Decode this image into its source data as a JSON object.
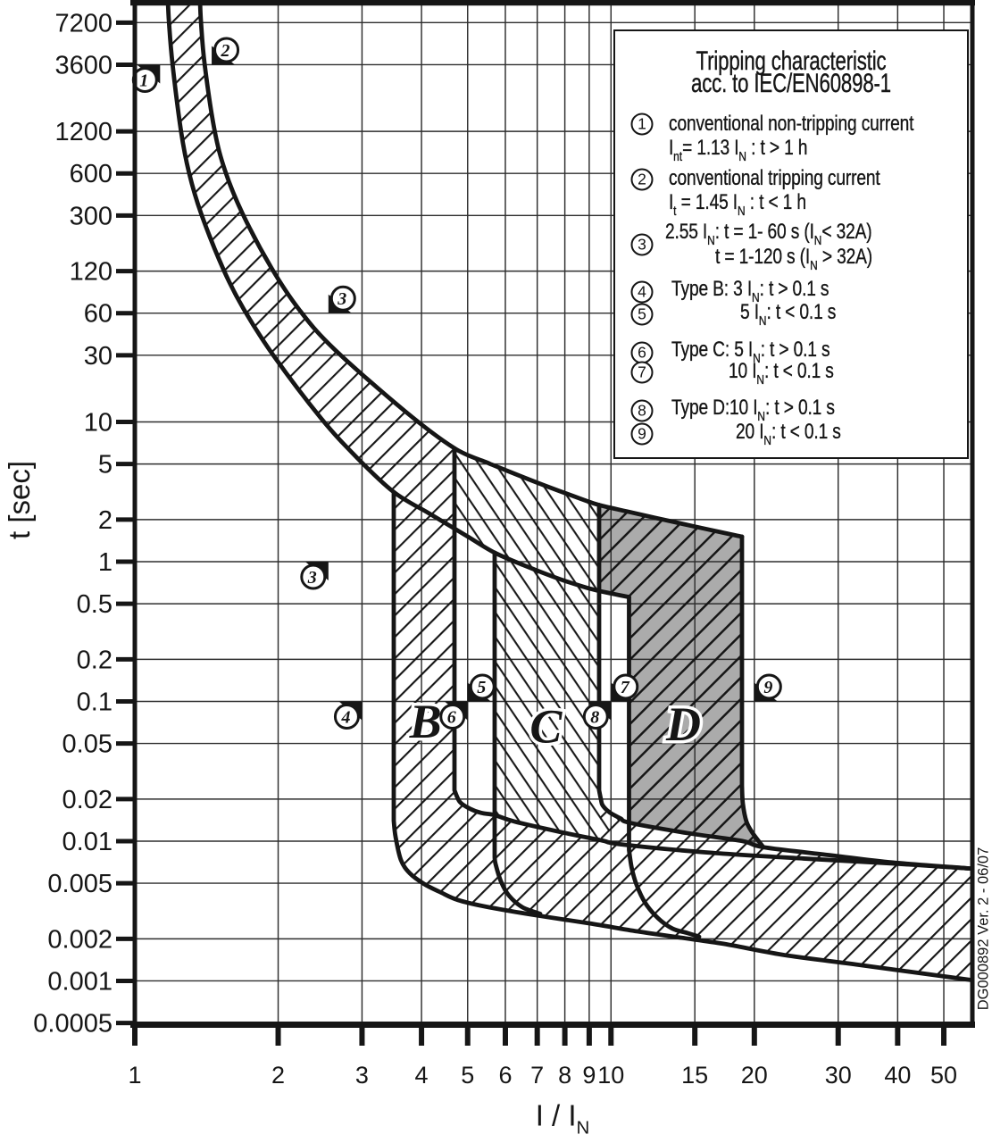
{
  "accent_color": "#161616",
  "grid_color": "#2e2e2e",
  "d_fill_color": "#ababab",
  "chart_data": {
    "type": "area",
    "title": "Tripping characteristic acc. to IEC/EN60898-1",
    "xlabel": "I / I~N~",
    "ylabel": "t [sec]",
    "x_log": true,
    "y_log": true,
    "xlim": [
      1,
      57.4
    ],
    "ylim": [
      0.000486,
      10000
    ],
    "x_ticks": [
      {
        "v": 1,
        "l": "1"
      },
      {
        "v": 2,
        "l": "2"
      },
      {
        "v": 3,
        "l": "3"
      },
      {
        "v": 4,
        "l": "4"
      },
      {
        "v": 5,
        "l": "5"
      },
      {
        "v": 6,
        "l": "6"
      },
      {
        "v": 7,
        "l": "7"
      },
      {
        "v": 8,
        "l": "8"
      },
      {
        "v": 9,
        "l": "9"
      },
      {
        "v": 10,
        "l": "10"
      },
      {
        "v": 15,
        "l": "15"
      },
      {
        "v": 20,
        "l": "20"
      },
      {
        "v": 30,
        "l": "30"
      },
      {
        "v": 40,
        "l": "40"
      },
      {
        "v": 50,
        "l": "50"
      }
    ],
    "y_ticks": [
      {
        "v": 7200,
        "l": "7200"
      },
      {
        "v": 3600,
        "l": "3600"
      },
      {
        "v": 1200,
        "l": "1200"
      },
      {
        "v": 600,
        "l": "600"
      },
      {
        "v": 300,
        "l": "300"
      },
      {
        "v": 120,
        "l": "120"
      },
      {
        "v": 60,
        "l": "60"
      },
      {
        "v": 30,
        "l": "30"
      },
      {
        "v": 10,
        "l": "10"
      },
      {
        "v": 5,
        "l": "5"
      },
      {
        "v": 2,
        "l": "2"
      },
      {
        "v": 1,
        "l": "1"
      },
      {
        "v": 0.5,
        "l": "0.5"
      },
      {
        "v": 0.2,
        "l": "0.2"
      },
      {
        "v": 0.1,
        "l": "0.1"
      },
      {
        "v": 0.05,
        "l": "0.05"
      },
      {
        "v": 0.02,
        "l": "0.02"
      },
      {
        "v": 0.01,
        "l": "0.01"
      },
      {
        "v": 0.005,
        "l": "0.005"
      },
      {
        "v": 0.002,
        "l": "0.002"
      },
      {
        "v": 0.001,
        "l": "0.001"
      },
      {
        "v": 0.0005,
        "l": "0.0005"
      }
    ],
    "curves": {
      "upper_thermal": [
        [
          1.3705,
          10451
        ],
        [
          1.3772,
          7238.207116
        ],
        [
          1.4014,
          3642.290064
        ],
        [
          1.4698,
          1229.046963
        ],
        [
          1.5476,
          625.464929
        ],
        [
          1.6828,
          310.447293
        ],
        [
          1.9343,
          127.069956
        ],
        [
          2.2135,
          63.679094
        ],
        [
          2.6144,
          33.542485
        ],
        [
          3.692,
          11.936004
        ],
        [
          4.6913,
          6.479
        ],
        [
          5.4898,
          5.122564
        ],
        [
          5.6973,
          4.857
        ],
        [
          7.0078,
          3.670717
        ],
        [
          8.6797,
          2.800637
        ],
        [
          9.4419,
          2.542
        ],
        [
          10.7973,
          2.288872
        ],
        [
          12.3945,
          2.058434
        ],
        [
          15.1152,
          1.772852
        ],
        [
          18.2094,
          1.546214
        ],
        [
          18.8399,
          1.51
        ]
      ],
      "lower_thermal": [
        [
          1.1732,
          10451
        ],
        [
          1.1796,
          7240.345346
        ],
        [
          1.1999,
          3639.497905
        ],
        [
          1.2507,
          1195.797667
        ],
        [
          1.2994,
          609.237311
        ],
        [
          1.3775,
          310.755203
        ],
        [
          1.537,
          121.994814
        ],
        [
          1.6958,
          63.531766
        ],
        [
          1.9581,
          29.642575
        ],
        [
          2.4616,
          10.610575
        ],
        [
          2.9231,
          5.579992
        ],
        [
          3.4977,
          3.151
        ],
        [
          4.1502,
          2.215161
        ],
        [
          4.6913,
          1.724299
        ],
        [
          5.0313,
          1.495027
        ],
        [
          5.6973,
          1.159
        ],
        [
          6.6239,
          0.929963
        ],
        [
          7.803,
          0.750567
        ],
        [
          8.7804,
          0.659358
        ],
        [
          9.4022,
          0.619036
        ],
        [
          9.4419,
          0.617
        ],
        [
          10.2118,
          0.583597
        ],
        [
          10.9113,
          0.558
        ]
      ],
      "band_min": [
        [
          3.4977,
          0.014
        ],
        [
          3.528,
          0.01076
        ],
        [
          3.6206,
          0.00734
        ],
        [
          3.7804,
          0.00589
        ],
        [
          4.0508,
          0.00494
        ],
        [
          4.3781,
          0.00432
        ],
        [
          4.773,
          0.00379
        ],
        [
          5.5277,
          0.00337
        ],
        [
          6.9491,
          0.00295
        ],
        [
          9.004,
          0.00258
        ],
        [
          11.3682,
          0.00226
        ],
        [
          13.9861,
          0.00204
        ],
        [
          17.2813,
          0.00184
        ],
        [
          22.8802,
          0.00154
        ],
        [
          32.7412,
          0.00131
        ],
        [
          56.4104,
          0.00102
        ],
        [
          58.8994,
          0.001
        ]
      ],
      "b_max": [
        [
          4.6913,
          0.02313
        ],
        [
          4.8144,
          0.0191
        ],
        [
          5.0486,
          0.01711
        ],
        [
          5.3401,
          0.01592
        ],
        [
          5.6973,
          0.01537
        ],
        [
          6.2651,
          0.01382
        ],
        [
          7.7078,
          0.01176
        ],
        [
          9.5238,
          0.01015
        ],
        [
          10.4728,
          0.0095
        ],
        [
          15.7834,
          0.00832
        ],
        [
          25.3783,
          0.00751
        ],
        [
          39.0818,
          0.00692
        ],
        [
          56.4104,
          0.00638
        ],
        [
          58.8994,
          0.00629
        ]
      ],
      "c_max": [
        [
          9.4419,
          0.02313
        ],
        [
          9.5238,
          0.01997
        ],
        [
          9.6064,
          0.01801
        ],
        [
          9.944,
          0.01601
        ],
        [
          10.4728,
          0.01455
        ],
        [
          10.9822,
          0.0135
        ],
        [
          14.4776,
          0.01142
        ],
        [
          18.8399,
          0.01003
        ],
        [
          20.8969,
          0.00905
        ],
        [
          29.1385,
          0.0079
        ],
        [
          39.0818,
          0.00703
        ],
        [
          56.4104,
          0.00638
        ],
        [
          58.8994,
          0.00629
        ]
      ],
      "d_min_arc": [
        [
          10.9113,
          0.00863
        ],
        [
          11.0536,
          0.00643
        ],
        [
          11.3192,
          0.00486
        ],
        [
          11.7982,
          0.00362
        ],
        [
          12.5388,
          0.00282
        ],
        [
          13.453,
          0.00237
        ],
        [
          14.4776,
          0.0022
        ],
        [
          15.3135,
          0.00207
        ]
      ],
      "d_max_fillet": [
        [
          18.8399,
          0.0249
        ],
        [
          18.9215,
          0.01855
        ],
        [
          19.2511,
          0.01382
        ],
        [
          19.8418,
          0.01142
        ],
        [
          20.8969,
          0.00905
        ]
      ],
      "c_left_fillet": [
        [
          5.6973,
          0.00767
        ],
        [
          5.722,
          0.00687
        ],
        [
          5.8722,
          0.00516
        ],
        [
          6.1048,
          0.00408
        ],
        [
          6.5133,
          0.00337
        ],
        [
          7.1007,
          0.00302
        ]
      ]
    },
    "bands": {
      "B": {
        "magnetic_range": [
          3.4977,
          4.6913
        ],
        "strip_top": [
          3.151,
          6.479
        ],
        "strip_bottom_start": 0.014,
        "label": "B",
        "label_at": [
          4.08,
          0.0726
        ]
      },
      "C": {
        "magnetic_range": [
          5.6973,
          9.4419
        ],
        "strip_top": [
          1.159,
          2.542
        ],
        "label": "C",
        "label_at": [
          7.3,
          0.067
        ]
      },
      "D": {
        "magnetic_range": [
          10.9113,
          18.8399
        ],
        "strip_top": [
          0.558,
          1.51
        ],
        "label": "D",
        "label_at": [
          14.2,
          0.0697
        ]
      }
    },
    "markers": [
      {
        "n": "1",
        "at": [
          1.13,
          3600
        ],
        "dir": "ur"
      },
      {
        "n": "2",
        "at": [
          1.45,
          3600
        ],
        "dir": "dl"
      },
      {
        "n": "3",
        "at": [
          2.55,
          60
        ],
        "dir": "dl"
      },
      {
        "n": "3",
        "at": [
          2.55,
          1
        ],
        "dir": "ur"
      },
      {
        "n": "4",
        "at": [
          3,
          0.1
        ],
        "dir": "ur"
      },
      {
        "n": "5",
        "at": [
          5,
          0.1
        ],
        "dir": "dl"
      },
      {
        "n": "6",
        "at": [
          5,
          0.1
        ],
        "dir": "ur"
      },
      {
        "n": "7",
        "at": [
          10,
          0.1
        ],
        "dir": "dl"
      },
      {
        "n": "8",
        "at": [
          10,
          0.1
        ],
        "dir": "ur"
      },
      {
        "n": "9",
        "at": [
          20,
          0.1
        ],
        "dir": "dl"
      }
    ]
  },
  "legend": {
    "title_lines": [
      "Tripping characteristic",
      "acc. to IEC/EN60898-1"
    ],
    "items": [
      {
        "num": "1",
        "ny": 139,
        "lines": [
          [
            "conventional non-tripping current",
            749,
            139
          ],
          [
            "I~nt~= 1.13 I~N~ : t > 1 h",
            749,
            168
          ]
        ]
      },
      {
        "num": "2",
        "ny": 201,
        "lines": [
          [
            "conventional tripping current",
            749,
            200
          ],
          [
            "I~t~ = 1.45 I~N~ : t < 1 h",
            749,
            229
          ]
        ]
      },
      {
        "num": "3",
        "ny": 274,
        "lines": [
          [
            "2.55 I~N~: t = 1- 60 s (I~N~< 32A)",
            745,
            262
          ],
          [
            "t = 1-120 s (I~N~ > 32A)",
            801,
            290
          ]
        ]
      },
      {
        "num": "4",
        "ny": 327,
        "lines": [
          [
            "Type B: 3 I~N~: t > 0.1 s",
            752,
            326
          ]
        ]
      },
      {
        "num": "5",
        "ny": 352,
        "lines": [
          [
            "5 I~N~: t < 0.1 s",
            829,
            352
          ]
        ]
      },
      {
        "num": "6",
        "ny": 395,
        "lines": [
          [
            "Type C: 5 I~N~: t > 0.1 s",
            752,
            394
          ]
        ]
      },
      {
        "num": "7",
        "ny": 417,
        "lines": [
          [
            "10 I~N~: t < 0.1 s",
            816,
            418
          ]
        ]
      },
      {
        "num": "8",
        "ny": 460,
        "lines": [
          [
            "Type D:10 I~N~: t > 0.1 s",
            752,
            459
          ]
        ]
      },
      {
        "num": "9",
        "ny": 486,
        "lines": [
          [
            "20 I~N~: t < 0.1 s",
            824,
            486
          ]
        ]
      }
    ]
  },
  "labels": {
    "y_axis_title": "t [sec]",
    "x_axis_title": "I / I~N~",
    "version_text": "DG000892 Ver. 2 - 06/07"
  }
}
